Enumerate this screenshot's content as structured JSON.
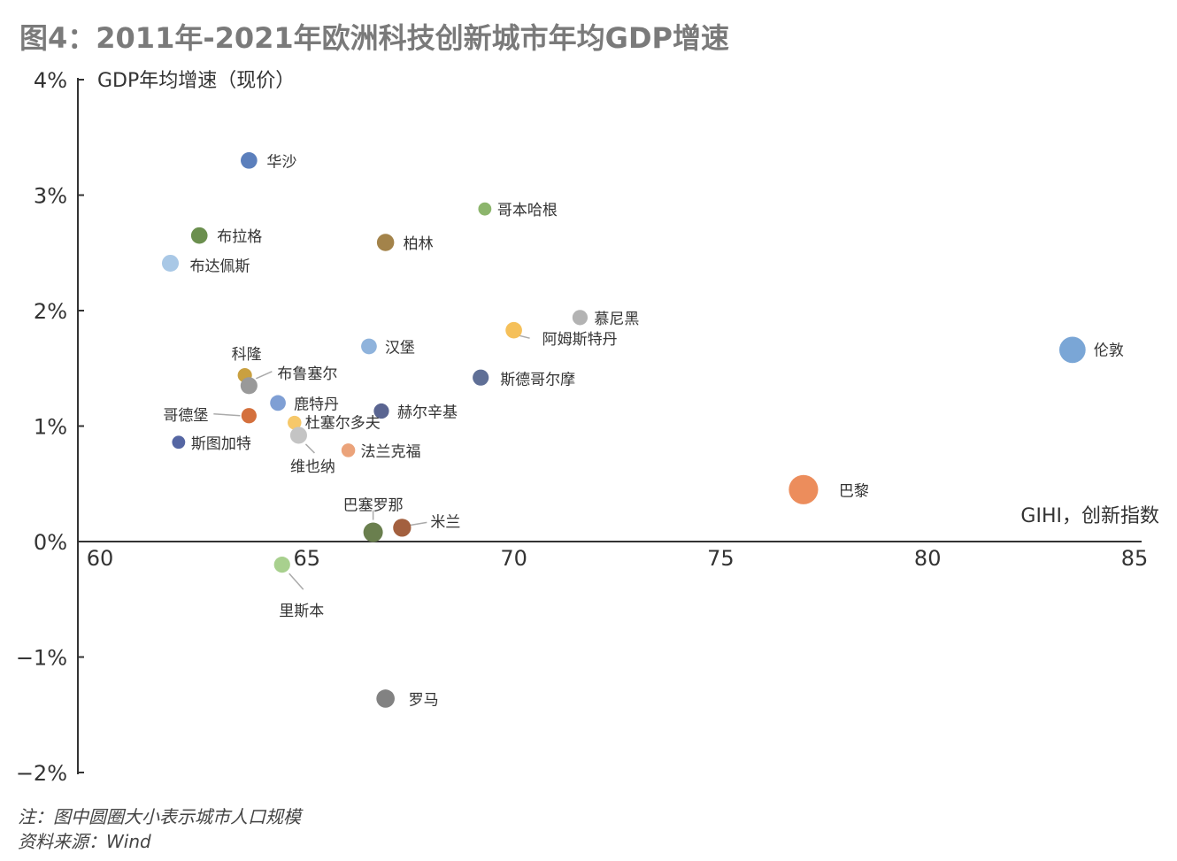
{
  "title": "图4：2011年-2021年欧洲科技创新城市年均GDP增速",
  "notes": [
    "注：图中圆圈大小表示城市人口规模",
    "资料来源：Wind"
  ],
  "chart_data": {
    "type": "scatter",
    "xlabel": "GIHI，创新指数",
    "ylabel": "GDP年均增速（现价）",
    "xlim": [
      60,
      85
    ],
    "ylim": [
      -2,
      4
    ],
    "x_ticks": [
      "60",
      "65",
      "70",
      "75",
      "80",
      "85"
    ],
    "y_ticks": [
      "4%",
      "3%",
      "2%",
      "1%",
      "0%",
      "−1%",
      "−2%"
    ],
    "grid": false,
    "size_meaning": "city population",
    "points": [
      {
        "name": "华沙",
        "x": 63.6,
        "y": 3.3,
        "size": 1.1,
        "color": "#5b7fbc"
      },
      {
        "name": "哥本哈根",
        "x": 69.3,
        "y": 2.88,
        "size": 0.4,
        "color": "#8cb56c"
      },
      {
        "name": "布拉格",
        "x": 62.4,
        "y": 2.65,
        "size": 1.1,
        "color": "#6b8f4e"
      },
      {
        "name": "柏林",
        "x": 66.9,
        "y": 2.59,
        "size": 1.3,
        "color": "#a3834a"
      },
      {
        "name": "布达佩斯",
        "x": 61.7,
        "y": 2.41,
        "size": 1.2,
        "color": "#a9c8e6"
      },
      {
        "name": "慕尼黑",
        "x": 71.6,
        "y": 1.94,
        "size": 0.8,
        "color": "#b3b3b3"
      },
      {
        "name": "阿姆斯特丹",
        "x": 70.0,
        "y": 1.83,
        "size": 1.1,
        "color": "#f5c05a"
      },
      {
        "name": "汉堡",
        "x": 66.5,
        "y": 1.69,
        "size": 0.9,
        "color": "#8fb3dc"
      },
      {
        "name": "伦敦",
        "x": 83.5,
        "y": 1.66,
        "size": 3.3,
        "color": "#7aa6d6"
      },
      {
        "name": "科隆",
        "x": 63.5,
        "y": 1.44,
        "size": 0.6,
        "color": "#c9a040"
      },
      {
        "name": "斯德哥尔摩",
        "x": 69.2,
        "y": 1.42,
        "size": 1.0,
        "color": "#5f6f96"
      },
      {
        "name": "布鲁塞尔",
        "x": 63.6,
        "y": 1.35,
        "size": 1.2,
        "color": "#999999"
      },
      {
        "name": "鹿特丹",
        "x": 64.3,
        "y": 1.2,
        "size": 0.9,
        "color": "#7f9fd4"
      },
      {
        "name": "赫尔辛基",
        "x": 66.8,
        "y": 1.13,
        "size": 0.8,
        "color": "#5a6591"
      },
      {
        "name": "哥德堡",
        "x": 63.6,
        "y": 1.09,
        "size": 0.8,
        "color": "#d4703d"
      },
      {
        "name": "杜塞尔多夫",
        "x": 64.7,
        "y": 1.03,
        "size": 0.5,
        "color": "#f6c86a"
      },
      {
        "name": "维也纳",
        "x": 64.8,
        "y": 0.92,
        "size": 1.2,
        "color": "#c4c4c4"
      },
      {
        "name": "斯图加特",
        "x": 61.9,
        "y": 0.86,
        "size": 0.4,
        "color": "#5566a3"
      },
      {
        "name": "法兰克福",
        "x": 66.0,
        "y": 0.79,
        "size": 0.5,
        "color": "#eba37a"
      },
      {
        "name": "巴黎",
        "x": 77.0,
        "y": 0.45,
        "size": 4.8,
        "color": "#ec8d5c"
      },
      {
        "name": "米兰",
        "x": 67.3,
        "y": 0.12,
        "size": 1.5,
        "color": "#a3603f"
      },
      {
        "name": "巴塞罗那",
        "x": 66.6,
        "y": 0.08,
        "size": 2.0,
        "color": "#6a7f4e"
      },
      {
        "name": "里斯本",
        "x": 64.4,
        "y": -0.2,
        "size": 1.0,
        "color": "#a8d08e"
      },
      {
        "name": "罗马",
        "x": 66.9,
        "y": -1.36,
        "size": 1.6,
        "color": "#828282"
      }
    ]
  }
}
